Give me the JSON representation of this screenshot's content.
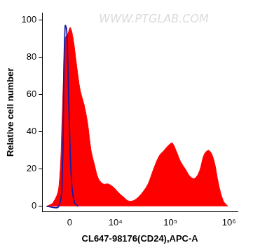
{
  "chart_data": {
    "type": "line",
    "annotation": "WWW.PTGLAB.COM",
    "x_label": "CL647-98176(CD24),APC-A",
    "y_label": "Relative cell number",
    "xlim": [
      -3800,
      1400000
    ],
    "xticks": [
      0,
      {
        "value": 10000,
        "label": "10⁴"
      },
      {
        "value": 100000,
        "label": "10⁵"
      },
      {
        "value": 1000000,
        "label": "10⁶"
      }
    ],
    "ylim": [
      -3,
      104
    ],
    "yticks": [
      0,
      20,
      40,
      60,
      80,
      100
    ],
    "grid": false,
    "series": [
      {
        "type": "area",
        "color": "#ff0000",
        "x": [
          -2900,
          -1800,
          -1040,
          -650,
          -370,
          -115,
          55,
          300,
          650,
          1040,
          1500,
          2030,
          2630,
          3320,
          4130,
          5450,
          7060,
          9330,
          11830,
          14400,
          17540,
          21900,
          27400,
          33400,
          40700,
          50900,
          63800,
          77600,
          94600,
          107700,
          125000,
          150000,
          181000,
          218000,
          262000,
          316000,
          381000,
          458000,
          552000,
          665000,
          800000,
          963000
        ],
        "values": [
          0,
          2,
          10,
          50,
          90,
          93,
          96,
          90,
          75,
          62,
          55,
          45,
          30,
          22,
          15,
          12,
          12,
          10,
          7,
          5,
          3,
          3,
          5,
          8,
          12,
          20,
          27,
          30,
          33,
          34,
          30,
          24,
          20,
          16,
          15,
          19,
          28,
          30,
          25,
          12,
          3,
          0
        ]
      },
      {
        "type": "line",
        "color": "#1a1aa0",
        "x": [
          -2900,
          -1050,
          -650,
          -500,
          -370,
          -240,
          -115,
          0,
          175,
          430,
          800
        ],
        "values": [
          0,
          0,
          20,
          70,
          97,
          95,
          70,
          40,
          12,
          2,
          0
        ]
      }
    ]
  }
}
